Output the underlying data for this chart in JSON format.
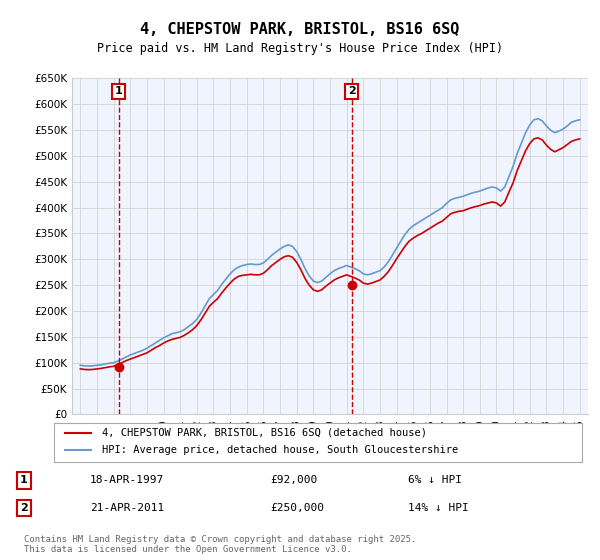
{
  "title": "4, CHEPSTOW PARK, BRISTOL, BS16 6SQ",
  "subtitle": "Price paid vs. HM Land Registry's House Price Index (HPI)",
  "legend_line1": "4, CHEPSTOW PARK, BRISTOL, BS16 6SQ (detached house)",
  "legend_line2": "HPI: Average price, detached house, South Gloucestershire",
  "sale1_date": "18-APR-1997",
  "sale1_price": 92000,
  "sale1_label": "6% ↓ HPI",
  "sale2_date": "21-APR-2011",
  "sale2_price": 250000,
  "sale2_label": "14% ↓ HPI",
  "footnote": "Contains HM Land Registry data © Crown copyright and database right 2025.\nThis data is licensed under the Open Government Licence v3.0.",
  "red_color": "#cc0000",
  "blue_color": "#6699cc",
  "grid_color": "#cccccc",
  "background_color": "#f0f4ff",
  "ylim": [
    0,
    650000
  ],
  "yticks": [
    0,
    50000,
    100000,
    150000,
    200000,
    250000,
    300000,
    350000,
    400000,
    450000,
    500000,
    550000,
    600000,
    650000
  ],
  "hpi_data": {
    "years": [
      1995.0,
      1995.25,
      1995.5,
      1995.75,
      1996.0,
      1996.25,
      1996.5,
      1996.75,
      1997.0,
      1997.25,
      1997.5,
      1997.75,
      1998.0,
      1998.25,
      1998.5,
      1998.75,
      1999.0,
      1999.25,
      1999.5,
      1999.75,
      2000.0,
      2000.25,
      2000.5,
      2000.75,
      2001.0,
      2001.25,
      2001.5,
      2001.75,
      2002.0,
      2002.25,
      2002.5,
      2002.75,
      2003.0,
      2003.25,
      2003.5,
      2003.75,
      2004.0,
      2004.25,
      2004.5,
      2004.75,
      2005.0,
      2005.25,
      2005.5,
      2005.75,
      2006.0,
      2006.25,
      2006.5,
      2006.75,
      2007.0,
      2007.25,
      2007.5,
      2007.75,
      2008.0,
      2008.25,
      2008.5,
      2008.75,
      2009.0,
      2009.25,
      2009.5,
      2009.75,
      2010.0,
      2010.25,
      2010.5,
      2010.75,
      2011.0,
      2011.25,
      2011.5,
      2011.75,
      2012.0,
      2012.25,
      2012.5,
      2012.75,
      2013.0,
      2013.25,
      2013.5,
      2013.75,
      2014.0,
      2014.25,
      2014.5,
      2014.75,
      2015.0,
      2015.25,
      2015.5,
      2015.75,
      2016.0,
      2016.25,
      2016.5,
      2016.75,
      2017.0,
      2017.25,
      2017.5,
      2017.75,
      2018.0,
      2018.25,
      2018.5,
      2018.75,
      2019.0,
      2019.25,
      2019.5,
      2019.75,
      2020.0,
      2020.25,
      2020.5,
      2020.75,
      2021.0,
      2021.25,
      2021.5,
      2021.75,
      2022.0,
      2022.25,
      2022.5,
      2022.75,
      2023.0,
      2023.25,
      2023.5,
      2023.75,
      2024.0,
      2024.25,
      2024.5,
      2024.75,
      2025.0
    ],
    "hpi_values": [
      95000,
      94000,
      93500,
      94000,
      95000,
      96000,
      97500,
      99000,
      100000,
      103000,
      107000,
      111000,
      115000,
      118000,
      121000,
      124000,
      128000,
      133000,
      138000,
      143000,
      148000,
      152000,
      156000,
      158000,
      160000,
      164000,
      170000,
      176000,
      184000,
      196000,
      210000,
      224000,
      232000,
      240000,
      252000,
      262000,
      272000,
      280000,
      285000,
      288000,
      290000,
      291000,
      290000,
      290000,
      293000,
      300000,
      308000,
      314000,
      320000,
      325000,
      328000,
      325000,
      315000,
      300000,
      282000,
      268000,
      258000,
      255000,
      258000,
      265000,
      272000,
      278000,
      282000,
      285000,
      288000,
      285000,
      282000,
      278000,
      272000,
      270000,
      272000,
      275000,
      278000,
      285000,
      295000,
      308000,
      322000,
      335000,
      348000,
      358000,
      365000,
      370000,
      375000,
      380000,
      385000,
      390000,
      395000,
      400000,
      408000,
      415000,
      418000,
      420000,
      422000,
      425000,
      428000,
      430000,
      432000,
      435000,
      438000,
      440000,
      438000,
      432000,
      440000,
      460000,
      480000,
      505000,
      525000,
      545000,
      560000,
      570000,
      572000,
      568000,
      558000,
      550000,
      545000,
      548000,
      552000,
      558000,
      565000,
      568000,
      570000
    ]
  },
  "red_data": {
    "years": [
      1995.0,
      1995.25,
      1995.5,
      1995.75,
      1996.0,
      1996.25,
      1996.5,
      1996.75,
      1997.0,
      1997.25,
      1997.5,
      1997.75,
      1998.0,
      1998.25,
      1998.5,
      1998.75,
      1999.0,
      1999.25,
      1999.5,
      1999.75,
      2000.0,
      2000.25,
      2000.5,
      2000.75,
      2001.0,
      2001.25,
      2001.5,
      2001.75,
      2002.0,
      2002.25,
      2002.5,
      2002.75,
      2003.0,
      2003.25,
      2003.5,
      2003.75,
      2004.0,
      2004.25,
      2004.5,
      2004.75,
      2005.0,
      2005.25,
      2005.5,
      2005.75,
      2006.0,
      2006.25,
      2006.5,
      2006.75,
      2007.0,
      2007.25,
      2007.5,
      2007.75,
      2008.0,
      2008.25,
      2008.5,
      2008.75,
      2009.0,
      2009.25,
      2009.5,
      2009.75,
      2010.0,
      2010.25,
      2010.5,
      2010.75,
      2011.0,
      2011.25,
      2011.5,
      2011.75,
      2012.0,
      2012.25,
      2012.5,
      2012.75,
      2013.0,
      2013.25,
      2013.5,
      2013.75,
      2014.0,
      2014.25,
      2014.5,
      2014.75,
      2015.0,
      2015.25,
      2015.5,
      2015.75,
      2016.0,
      2016.25,
      2016.5,
      2016.75,
      2017.0,
      2017.25,
      2017.5,
      2017.75,
      2018.0,
      2018.25,
      2018.5,
      2018.75,
      2019.0,
      2019.25,
      2019.5,
      2019.75,
      2020.0,
      2020.25,
      2020.5,
      2020.75,
      2021.0,
      2021.25,
      2021.5,
      2021.75,
      2022.0,
      2022.25,
      2022.5,
      2022.75,
      2023.0,
      2023.25,
      2023.5,
      2023.75,
      2024.0,
      2024.25,
      2024.5,
      2024.75,
      2025.0
    ],
    "values": [
      88000,
      87000,
      86500,
      87000,
      88000,
      89000,
      90500,
      92000,
      93000,
      96000,
      100000,
      104000,
      107000,
      110000,
      113000,
      116000,
      119000,
      124000,
      129000,
      133000,
      138000,
      142000,
      145000,
      147000,
      149000,
      153000,
      158000,
      164000,
      172000,
      183000,
      196000,
      209000,
      217000,
      224000,
      235000,
      245000,
      254000,
      262000,
      267000,
      269000,
      270000,
      271000,
      270000,
      270000,
      273000,
      280000,
      288000,
      294000,
      300000,
      305000,
      307000,
      304000,
      294000,
      280000,
      263000,
      250000,
      241000,
      238000,
      241000,
      248000,
      254000,
      260000,
      264000,
      267000,
      270000,
      267000,
      264000,
      260000,
      254000,
      252000,
      254000,
      257000,
      260000,
      267000,
      276000,
      288000,
      301000,
      313000,
      325000,
      335000,
      341000,
      346000,
      350000,
      355000,
      360000,
      365000,
      370000,
      374000,
      381000,
      388000,
      391000,
      393000,
      394000,
      397000,
      400000,
      402000,
      404000,
      407000,
      409000,
      411000,
      409000,
      403000,
      411000,
      430000,
      448000,
      472000,
      491000,
      510000,
      524000,
      533000,
      535000,
      531000,
      521000,
      513000,
      508000,
      512000,
      516000,
      522000,
      528000,
      531000,
      533000
    ]
  },
  "sale1_x": 1997.3,
  "sale2_x": 2011.3
}
